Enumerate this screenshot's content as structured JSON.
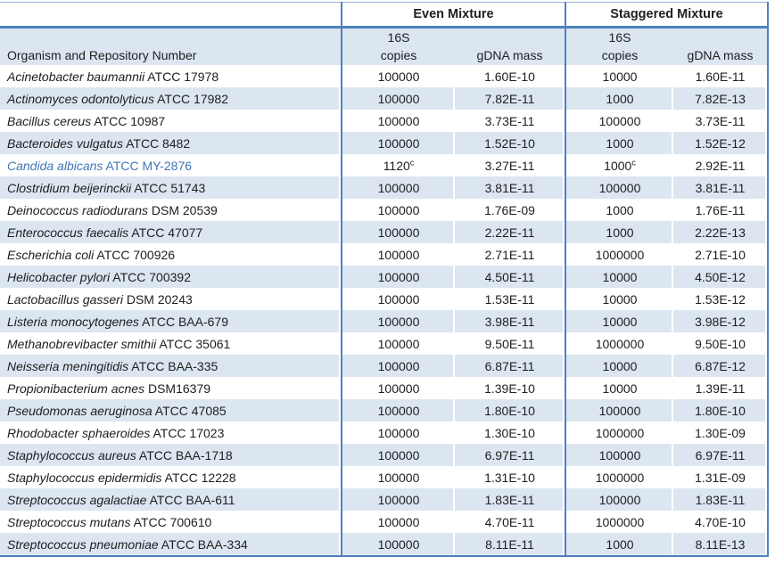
{
  "colors": {
    "stripe": "#DCE6F1",
    "border_blue": "#4F81BD",
    "thin_top_border": "#95B3D7",
    "highlight_text": "#4076B5",
    "text": "#202020"
  },
  "table": {
    "group_headers": {
      "even": "Even Mixture",
      "staggered": "Staggered Mixture"
    },
    "sub_headers": {
      "s16": "16S",
      "organism": "Organism and Repository Number",
      "copies": "copies",
      "gdna": "gDNA mass"
    },
    "rows": [
      {
        "organism": "Acinetobacter baumannii",
        "repository": "ATCC 17978",
        "even_copies": "100000",
        "even_gdna": "1.60E-10",
        "stag_copies": "10000",
        "stag_gdna": "1.60E-11",
        "highlight": false
      },
      {
        "organism": "Actinomyces odontolyticus",
        "repository": "ATCC 17982",
        "even_copies": "100000",
        "even_gdna": "7.82E-11",
        "stag_copies": "1000",
        "stag_gdna": "7.82E-13",
        "highlight": false
      },
      {
        "organism": "Bacillus cereus",
        "repository": "ATCC 10987",
        "even_copies": "100000",
        "even_gdna": "3.73E-11",
        "stag_copies": "100000",
        "stag_gdna": "3.73E-11",
        "highlight": false
      },
      {
        "organism": "Bacteroides vulgatus",
        "repository": "ATCC 8482",
        "even_copies": "100000",
        "even_gdna": "1.52E-10",
        "stag_copies": "1000",
        "stag_gdna": "1.52E-12",
        "highlight": false
      },
      {
        "organism": "Candida albicans",
        "repository": "ATCC MY-2876",
        "even_copies": "1120",
        "even_copies_sup": "c",
        "even_gdna": "3.27E-11",
        "stag_copies": "1000",
        "stag_copies_sup": "c",
        "stag_gdna": "2.92E-11",
        "highlight": true
      },
      {
        "organism": "Clostridium beijerinckii",
        "repository": "ATCC 51743",
        "even_copies": "100000",
        "even_gdna": "3.81E-11",
        "stag_copies": "100000",
        "stag_gdna": "3.81E-11",
        "highlight": false
      },
      {
        "organism": "Deinococcus radiodurans",
        "repository": "DSM 20539",
        "even_copies": "100000",
        "even_gdna": "1.76E-09",
        "stag_copies": "1000",
        "stag_gdna": "1.76E-11",
        "highlight": false
      },
      {
        "organism": "Enterococcus faecalis",
        "repository": "ATCC 47077",
        "even_copies": "100000",
        "even_gdna": "2.22E-11",
        "stag_copies": "1000",
        "stag_gdna": "2.22E-13",
        "highlight": false
      },
      {
        "organism": "Escherichia coli",
        "repository": "ATCC 700926",
        "even_copies": "100000",
        "even_gdna": "2.71E-11",
        "stag_copies": "1000000",
        "stag_gdna": "2.71E-10",
        "highlight": false
      },
      {
        "organism": "Helicobacter pylori",
        "repository": "ATCC 700392",
        "even_copies": "100000",
        "even_gdna": "4.50E-11",
        "stag_copies": "10000",
        "stag_gdna": "4.50E-12",
        "highlight": false
      },
      {
        "organism": "Lactobacillus gasseri",
        "repository": "DSM 20243",
        "even_copies": "100000",
        "even_gdna": "1.53E-11",
        "stag_copies": "10000",
        "stag_gdna": "1.53E-12",
        "highlight": false
      },
      {
        "organism": "Listeria monocytogenes",
        "repository": "ATCC BAA-679",
        "even_copies": "100000",
        "even_gdna": "3.98E-11",
        "stag_copies": "10000",
        "stag_gdna": "3.98E-12",
        "highlight": false
      },
      {
        "organism": "Methanobrevibacter smithii",
        "repository": "ATCC 35061",
        "even_copies": "100000",
        "even_gdna": "9.50E-11",
        "stag_copies": "1000000",
        "stag_gdna": "9.50E-10",
        "highlight": false
      },
      {
        "organism": "Neisseria meningitidis",
        "repository": "ATCC BAA-335",
        "even_copies": "100000",
        "even_gdna": "6.87E-11",
        "stag_copies": "10000",
        "stag_gdna": "6.87E-12",
        "highlight": false
      },
      {
        "organism": "Propionibacterium acnes",
        "repository": "DSM16379",
        "even_copies": "100000",
        "even_gdna": "1.39E-10",
        "stag_copies": "10000",
        "stag_gdna": "1.39E-11",
        "highlight": false
      },
      {
        "organism": "Pseudomonas aeruginosa",
        "repository": "ATCC 47085",
        "even_copies": "100000",
        "even_gdna": "1.80E-10",
        "stag_copies": "100000",
        "stag_gdna": "1.80E-10",
        "highlight": false
      },
      {
        "organism": "Rhodobacter sphaeroides",
        "repository": "ATCC 17023",
        "even_copies": "100000",
        "even_gdna": "1.30E-10",
        "stag_copies": "1000000",
        "stag_gdna": "1.30E-09",
        "highlight": false
      },
      {
        "organism": "Staphylococcus aureus",
        "repository": "ATCC BAA-1718",
        "even_copies": "100000",
        "even_gdna": "6.97E-11",
        "stag_copies": "100000",
        "stag_gdna": "6.97E-11",
        "highlight": false
      },
      {
        "organism": "Staphylococcus epidermidis",
        "repository": "ATCC 12228",
        "even_copies": "100000",
        "even_gdna": "1.31E-10",
        "stag_copies": "1000000",
        "stag_gdna": "1.31E-09",
        "highlight": false
      },
      {
        "organism": "Streptococcus agalactiae",
        "repository": "ATCC BAA-611",
        "even_copies": "100000",
        "even_gdna": "1.83E-11",
        "stag_copies": "100000",
        "stag_gdna": "1.83E-11",
        "highlight": false
      },
      {
        "organism": "Streptococcus mutans",
        "repository": "ATCC 700610",
        "even_copies": "100000",
        "even_gdna": "4.70E-11",
        "stag_copies": "1000000",
        "stag_gdna": "4.70E-10",
        "highlight": false
      },
      {
        "organism": "Streptococcus pneumoniae",
        "repository": "ATCC BAA-334",
        "even_copies": "100000",
        "even_gdna": "8.11E-11",
        "stag_copies": "1000",
        "stag_gdna": "8.11E-13",
        "highlight": false
      }
    ]
  }
}
